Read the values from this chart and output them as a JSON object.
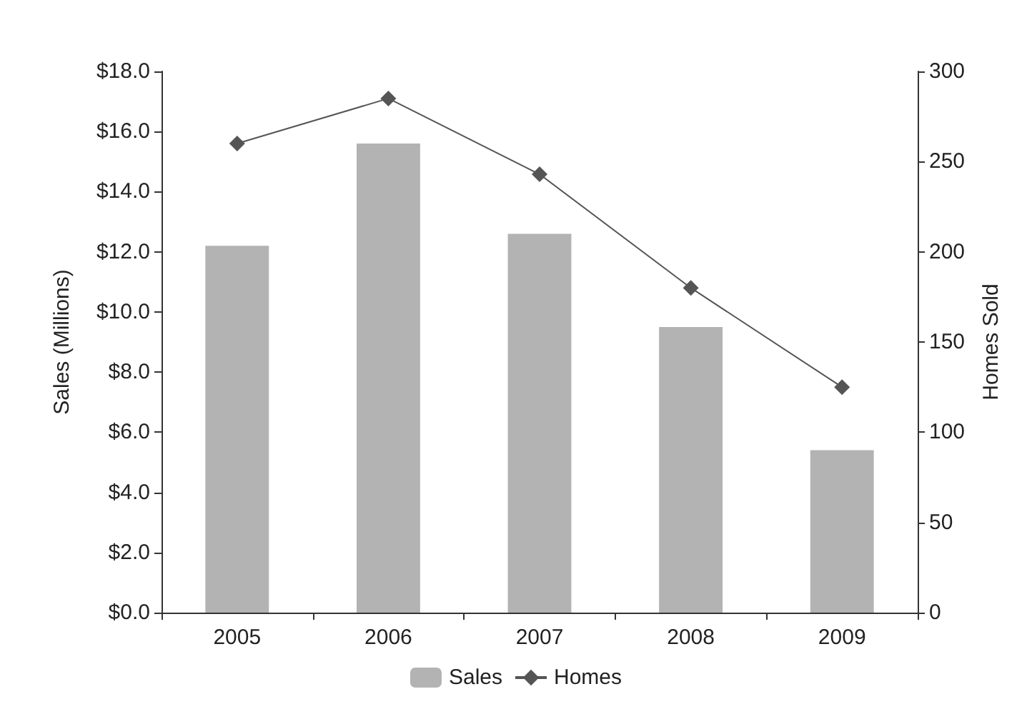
{
  "chart_data": {
    "type": "bar",
    "categories": [
      "2005",
      "2006",
      "2007",
      "2008",
      "2009"
    ],
    "ylabel": "Sales (Millions)",
    "y2label": "Homes Sold",
    "series": [
      {
        "name": "Sales",
        "color": "#b3b3b3",
        "values": [
          12.2,
          15.6,
          12.6,
          9.5,
          5.4
        ]
      },
      {
        "name": "Homes",
        "type": "line",
        "axis": "y2",
        "color": "#555555",
        "marker": "diamond",
        "values": [
          260,
          285,
          243,
          180,
          125
        ]
      }
    ],
    "ylim": [
      0,
      18
    ],
    "yticks": [
      {
        "value": 0,
        "label": "$0.0"
      },
      {
        "value": 2,
        "label": "$2.0"
      },
      {
        "value": 4,
        "label": "$4.0"
      },
      {
        "value": 6,
        "label": "$6.0"
      },
      {
        "value": 8,
        "label": "$8.0"
      },
      {
        "value": 10,
        "label": "$10.0"
      },
      {
        "value": 12,
        "label": "$12.0"
      },
      {
        "value": 14,
        "label": "$14.0"
      },
      {
        "value": 16,
        "label": "$16.0"
      },
      {
        "value": 18,
        "label": "$18.0"
      }
    ],
    "y2lim": [
      0,
      300
    ],
    "y2ticks": [
      0,
      50,
      100,
      150,
      200,
      250,
      300
    ],
    "legend": "bottom",
    "grid": false
  }
}
